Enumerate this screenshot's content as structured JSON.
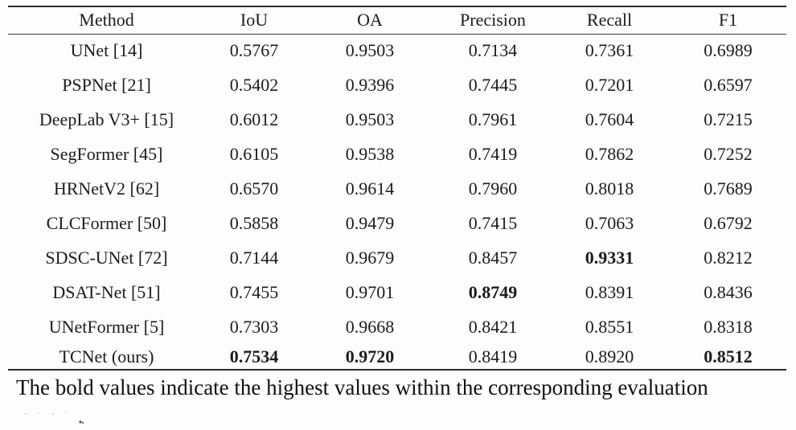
{
  "table": {
    "headers": [
      "Method",
      "IoU",
      "OA",
      "Precision",
      "Recall",
      "F1"
    ],
    "rows": [
      {
        "cells": [
          "UNet [14]",
          "0.5767",
          "0.9503",
          "0.7134",
          "0.7361",
          "0.6989"
        ],
        "bold": []
      },
      {
        "cells": [
          "PSPNet [21]",
          "0.5402",
          "0.9396",
          "0.7445",
          "0.7201",
          "0.6597"
        ],
        "bold": []
      },
      {
        "cells": [
          "DeepLab V3+ [15]",
          "0.6012",
          "0.9503",
          "0.7961",
          "0.7604",
          "0.7215"
        ],
        "bold": []
      },
      {
        "cells": [
          "SegFormer [45]",
          "0.6105",
          "0.9538",
          "0.7419",
          "0.7862",
          "0.7252"
        ],
        "bold": []
      },
      {
        "cells": [
          "HRNetV2 [62]",
          "0.6570",
          "0.9614",
          "0.7960",
          "0.8018",
          "0.7689"
        ],
        "bold": []
      },
      {
        "cells": [
          "CLCFormer [50]",
          "0.5858",
          "0.9479",
          "0.7415",
          "0.7063",
          "0.6792"
        ],
        "bold": []
      },
      {
        "cells": [
          "SDSC-UNet [72]",
          "0.7144",
          "0.9679",
          "0.8457",
          "0.9331",
          "0.8212"
        ],
        "bold": [
          4
        ]
      },
      {
        "cells": [
          "DSAT-Net [51]",
          "0.7455",
          "0.9701",
          "0.8749",
          "0.8391",
          "0.8436"
        ],
        "bold": [
          3
        ]
      },
      {
        "cells": [
          "UNetFormer [5]",
          "0.7303",
          "0.9668",
          "0.8421",
          "0.8551",
          "0.8318"
        ],
        "bold": []
      },
      {
        "cells": [
          "TCNet (ours)",
          "0.7534",
          "0.9720",
          "0.8419",
          "0.8920",
          "0.8512"
        ],
        "bold": [
          1,
          2,
          5
        ]
      }
    ]
  },
  "footnote": "The bold values indicate the highest values within the corresponding evaluation"
}
